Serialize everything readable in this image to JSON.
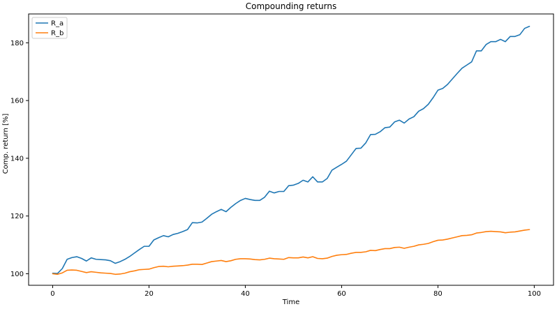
{
  "chart_data": {
    "type": "line",
    "title": "Compounding returns",
    "xlabel": "Time",
    "ylabel": "Comp. return [%]",
    "xlim": [
      -5,
      104
    ],
    "ylim": [
      96,
      190
    ],
    "xticks": [
      0,
      20,
      40,
      60,
      80,
      100
    ],
    "yticks": [
      100,
      120,
      140,
      160,
      180
    ],
    "grid": false,
    "legend_position": "top-left",
    "x": [
      0,
      1,
      2,
      3,
      4,
      5,
      6,
      7,
      8,
      9,
      10,
      11,
      12,
      13,
      14,
      15,
      16,
      17,
      18,
      19,
      20,
      21,
      22,
      23,
      24,
      25,
      26,
      27,
      28,
      29,
      30,
      31,
      32,
      33,
      34,
      35,
      36,
      37,
      38,
      39,
      40,
      41,
      42,
      43,
      44,
      45,
      46,
      47,
      48,
      49,
      50,
      51,
      52,
      53,
      54,
      55,
      56,
      57,
      58,
      59,
      60,
      61,
      62,
      63,
      64,
      65,
      66,
      67,
      68,
      69,
      70,
      71,
      72,
      73,
      74,
      75,
      76,
      77,
      78,
      79,
      80,
      81,
      82,
      83,
      84,
      85,
      86,
      87,
      88,
      89,
      90,
      91,
      92,
      93,
      94,
      95,
      96,
      97,
      98,
      99
    ],
    "series": [
      {
        "name": "R_a",
        "color": "#1f77b4",
        "values": [
          100.2,
          100.1,
          101.8,
          105.0,
          105.6,
          105.9,
          105.3,
          104.4,
          105.5,
          105.0,
          104.9,
          104.8,
          104.5,
          103.6,
          104.2,
          105.0,
          106.0,
          107.2,
          108.4,
          109.5,
          109.5,
          111.7,
          112.5,
          113.2,
          112.8,
          113.6,
          114.0,
          114.6,
          115.3,
          117.7,
          117.6,
          117.9,
          119.2,
          120.6,
          121.5,
          122.3,
          121.5,
          123.0,
          124.3,
          125.4,
          126.1,
          125.7,
          125.4,
          125.4,
          126.5,
          128.6,
          128.0,
          128.5,
          128.5,
          130.5,
          130.7,
          131.3,
          132.4,
          131.8,
          133.6,
          131.8,
          131.8,
          133.0,
          135.9,
          136.9,
          137.9,
          139.0,
          141.2,
          143.4,
          143.5,
          145.3,
          148.2,
          148.3,
          149.2,
          150.6,
          150.8,
          152.6,
          153.2,
          152.2,
          153.6,
          154.4,
          156.3,
          157.2,
          158.7,
          161.0,
          163.6,
          164.2,
          165.6,
          167.5,
          169.4,
          171.2,
          172.3,
          173.4,
          177.2,
          177.2,
          179.4,
          180.4,
          180.4,
          181.2,
          180.4,
          182.2,
          182.2,
          182.8,
          185.0,
          185.7
        ]
      },
      {
        "name": "R_b",
        "color": "#ff7f0e",
        "values": [
          100.0,
          99.8,
          100.3,
          101.2,
          101.3,
          101.2,
          100.8,
          100.4,
          100.7,
          100.5,
          100.3,
          100.2,
          100.1,
          99.8,
          99.9,
          100.2,
          100.7,
          101.0,
          101.4,
          101.5,
          101.6,
          102.1,
          102.5,
          102.6,
          102.4,
          102.6,
          102.7,
          102.8,
          103.0,
          103.3,
          103.3,
          103.2,
          103.7,
          104.2,
          104.4,
          104.6,
          104.2,
          104.5,
          105.0,
          105.2,
          105.2,
          105.1,
          104.9,
          104.8,
          105.0,
          105.4,
          105.2,
          105.1,
          105.0,
          105.6,
          105.5,
          105.5,
          105.8,
          105.5,
          105.9,
          105.3,
          105.2,
          105.4,
          106.0,
          106.4,
          106.6,
          106.7,
          107.1,
          107.4,
          107.4,
          107.6,
          108.1,
          108.0,
          108.4,
          108.7,
          108.7,
          109.1,
          109.2,
          108.8,
          109.2,
          109.5,
          110.0,
          110.2,
          110.5,
          111.1,
          111.6,
          111.7,
          112.0,
          112.4,
          112.8,
          113.2,
          113.3,
          113.5,
          114.1,
          114.3,
          114.6,
          114.7,
          114.6,
          114.5,
          114.2,
          114.4,
          114.5,
          114.8,
          115.1,
          115.3
        ]
      }
    ]
  }
}
